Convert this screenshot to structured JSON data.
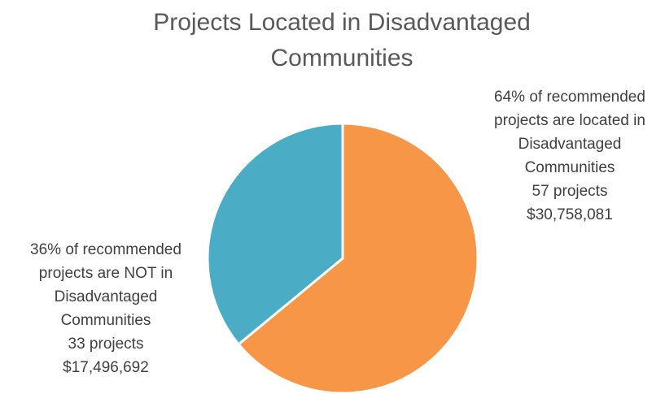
{
  "chart_data": {
    "type": "pie",
    "title": "Projects Located in Disadvantaged Communities",
    "values": [
      64,
      36
    ],
    "value_labels": [
      [
        "64% of recommended",
        "projects are located in",
        "Disadvantaged",
        "Communities",
        "57 projects",
        "$30,758,081"
      ],
      [
        "36% of recommended",
        "projects are NOT in",
        "Disadvantaged",
        "Communities",
        "33 projects",
        "$17,496,692"
      ]
    ],
    "colors": [
      "#f79646",
      "#4bacc6"
    ]
  }
}
